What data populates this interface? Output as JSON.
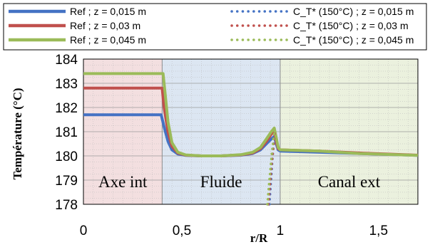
{
  "chart_data": {
    "type": "line",
    "xlabel": "r/R",
    "ylabel": "Température (°C)",
    "xlim": [
      0,
      1.7
    ],
    "ylim": [
      178,
      184
    ],
    "xticks": [
      "0",
      "0,5",
      "1",
      "1,5"
    ],
    "xtick_values": [
      0,
      0.5,
      1,
      1.5
    ],
    "yticks": [
      "178",
      "179",
      "180",
      "181",
      "182",
      "183",
      "184"
    ],
    "ytick_values": [
      178,
      179,
      180,
      181,
      182,
      183,
      184
    ],
    "grid": true,
    "legend_position": "top",
    "regions": [
      {
        "label": "Axe int",
        "x_range": [
          0,
          0.4
        ],
        "color": "#f3dfe0"
      },
      {
        "label": "Fluide",
        "x_range": [
          0.4,
          1.0
        ],
        "color": "#dce6f2"
      },
      {
        "label": "Canal ext",
        "x_range": [
          1.0,
          1.7
        ],
        "color": "#ebf1de"
      }
    ],
    "series": [
      {
        "name": "Ref ; z = 0,015 m",
        "style": "solid",
        "color": "#4472c4",
        "x": [
          0,
          0.39,
          0.395,
          0.41,
          0.43,
          0.45,
          0.48,
          0.52,
          0.6,
          0.7,
          0.8,
          0.86,
          0.9,
          0.93,
          0.955,
          0.97,
          0.98,
          0.99,
          1.0,
          1.2,
          1.4,
          1.7
        ],
        "y": [
          181.7,
          181.7,
          181.7,
          181.2,
          180.6,
          180.25,
          180.08,
          180.02,
          180.0,
          180.0,
          180.03,
          180.1,
          180.25,
          180.5,
          180.7,
          180.8,
          180.5,
          180.25,
          180.2,
          180.15,
          180.1,
          180.02
        ]
      },
      {
        "name": "Ref ; z = 0,03 m",
        "style": "solid",
        "color": "#c0504d",
        "x": [
          0,
          0.39,
          0.4,
          0.41,
          0.43,
          0.45,
          0.48,
          0.52,
          0.6,
          0.7,
          0.8,
          0.86,
          0.9,
          0.93,
          0.955,
          0.97,
          0.98,
          0.99,
          1.0,
          1.2,
          1.4,
          1.7
        ],
        "y": [
          182.8,
          182.8,
          182.8,
          182.0,
          181.0,
          180.4,
          180.12,
          180.03,
          180.0,
          180.0,
          180.04,
          180.12,
          180.3,
          180.6,
          180.9,
          181.0,
          180.6,
          180.3,
          180.25,
          180.2,
          180.12,
          180.03
        ]
      },
      {
        "name": "Ref ; z = 0,045 m",
        "style": "solid",
        "color": "#9bbb59",
        "x": [
          0,
          0.39,
          0.405,
          0.415,
          0.43,
          0.45,
          0.48,
          0.52,
          0.6,
          0.7,
          0.8,
          0.86,
          0.9,
          0.93,
          0.955,
          0.97,
          0.98,
          0.99,
          1.0,
          1.2,
          1.4,
          1.7
        ],
        "y": [
          183.4,
          183.4,
          183.4,
          182.6,
          181.4,
          180.55,
          180.15,
          180.04,
          180.0,
          180.0,
          180.05,
          180.15,
          180.35,
          180.7,
          181.0,
          181.15,
          180.75,
          180.35,
          180.25,
          180.2,
          180.1,
          180.02
        ]
      },
      {
        "name": "C_T* (150°C) ; z = 0,015 m",
        "style": "dotted",
        "color": "#4472c4",
        "x": [
          0.945,
          0.95,
          0.955,
          0.96,
          0.965,
          0.97
        ],
        "y": [
          178.0,
          178.6,
          179.2,
          179.8,
          180.3,
          180.75
        ]
      },
      {
        "name": "C_T* (150°C) ; z = 0,03 m",
        "style": "dotted",
        "color": "#c0504d",
        "x": [
          0.94,
          0.947,
          0.954,
          0.961,
          0.967,
          0.972
        ],
        "y": [
          178.0,
          178.7,
          179.4,
          180.0,
          180.5,
          180.95
        ]
      },
      {
        "name": "C_T* (150°C) ; z = 0,045 m",
        "style": "dotted",
        "color": "#9bbb59",
        "x": [
          0.935,
          0.943,
          0.951,
          0.959,
          0.966,
          0.972
        ],
        "y": [
          178.0,
          178.8,
          179.5,
          180.2,
          180.7,
          181.1
        ]
      }
    ]
  }
}
